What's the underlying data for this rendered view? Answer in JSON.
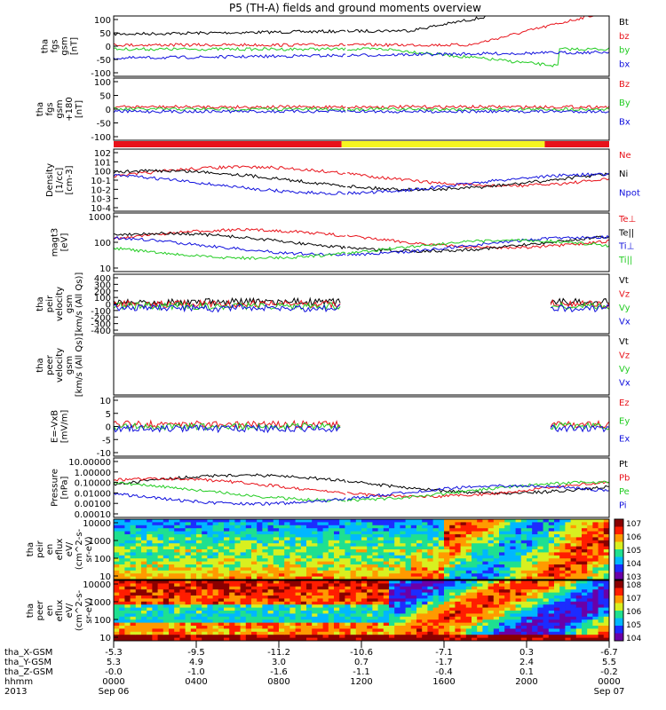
{
  "title": "P5 (TH-A) fields and ground moments overview",
  "colors": {
    "black": "#000000",
    "red": "#e8121a",
    "green": "#22cc22",
    "blue": "#1010dd",
    "yellow": "#f5f520"
  },
  "chart_data": [
    {
      "type": "line",
      "panel": "fgs",
      "ylabel": [
        "tha",
        "fgs",
        "gsm",
        "[nT]"
      ],
      "yticks": [
        "100",
        "50",
        "0",
        "-50",
        "-100"
      ],
      "series": [
        {
          "name": "Bt",
          "color": "black"
        },
        {
          "name": "bz",
          "color": "red"
        },
        {
          "name": "by",
          "color": "green"
        },
        {
          "name": "bx",
          "color": "blue"
        }
      ],
      "ylim": [
        -100,
        100
      ]
    },
    {
      "type": "line",
      "panel": "fgs_dsl",
      "ylabel": [
        "tha",
        "fgs",
        "gsm",
        "+180",
        "[nT]"
      ],
      "yticks": [
        "100",
        "50",
        "0",
        "-50",
        "-100"
      ],
      "series": [
        {
          "name": "Bz",
          "color": "red"
        },
        {
          "name": "By",
          "color": "green"
        },
        {
          "name": "Bx",
          "color": "blue"
        }
      ],
      "ylim": [
        -120,
        100
      ]
    },
    {
      "type": "bar",
      "panel": "mode_bar",
      "segments": [
        {
          "from": 0.0,
          "to": 0.46,
          "color": "red"
        },
        {
          "from": 0.46,
          "to": 0.87,
          "color": "yellow"
        },
        {
          "from": 0.87,
          "to": 1.0,
          "color": "red"
        }
      ]
    },
    {
      "type": "line",
      "panel": "density",
      "ylabel": [
        "Density",
        "[1/cc]",
        "[cm-3]"
      ],
      "yticks": [
        "10^2",
        "10^1",
        "10^0",
        "10^-1",
        "10^-2",
        "10^-3",
        "10^-4"
      ],
      "series": [
        {
          "name": "Ne",
          "color": "red"
        },
        {
          "name": "Ni",
          "color": "black"
        },
        {
          "name": "Npot",
          "color": "blue"
        }
      ],
      "log": true
    },
    {
      "type": "line",
      "panel": "temperature",
      "ylabel": [
        "magt3",
        "[eV]"
      ],
      "yticks": [
        "1000",
        "100",
        "10"
      ],
      "series": [
        {
          "name": "Te⊥",
          "color": "red"
        },
        {
          "name": "Te||",
          "color": "black"
        },
        {
          "name": "Ti⊥",
          "color": "blue"
        },
        {
          "name": "Ti||",
          "color": "green"
        }
      ],
      "log": true
    },
    {
      "type": "line",
      "panel": "peir_velocity",
      "ylabel": [
        "tha",
        "peir",
        "velocity",
        "gsm",
        "[km/s (All Qs)]"
      ],
      "yticks": [
        "400",
        "300",
        "200",
        "100",
        "0",
        "-100",
        "-200",
        "-300",
        "-400"
      ],
      "series": [
        {
          "name": "Vt",
          "color": "black"
        },
        {
          "name": "Vz",
          "color": "red"
        },
        {
          "name": "Vy",
          "color": "green"
        },
        {
          "name": "Vx",
          "color": "blue"
        }
      ],
      "ylim": [
        -400,
        400
      ]
    },
    {
      "type": "line",
      "panel": "peer_velocity",
      "ylabel": [
        "tha",
        "peer",
        "velocity",
        "gsm",
        "[km/s (All Qs)]"
      ],
      "yticks": [],
      "series": [
        {
          "name": "Vt",
          "color": "black"
        },
        {
          "name": "Vz",
          "color": "red"
        },
        {
          "name": "Vy",
          "color": "green"
        },
        {
          "name": "Vx",
          "color": "blue"
        }
      ]
    },
    {
      "type": "line",
      "panel": "efield",
      "ylabel": [
        "E=-VxB",
        "[mV/m]"
      ],
      "yticks": [
        "10",
        "5",
        "0",
        "-5",
        "-10"
      ],
      "series": [
        {
          "name": "Ez",
          "color": "red"
        },
        {
          "name": "Ey",
          "color": "green"
        },
        {
          "name": "Ex",
          "color": "blue"
        }
      ],
      "ylim": [
        -10,
        10
      ]
    },
    {
      "type": "line",
      "panel": "pressure",
      "ylabel": [
        "Pressure",
        "[nPa]"
      ],
      "yticks": [
        "10.00000",
        "1.00000",
        "0.10000",
        "0.01000",
        "0.00100",
        "0.00010"
      ],
      "series": [
        {
          "name": "Pt",
          "color": "black"
        },
        {
          "name": "Pb",
          "color": "red"
        },
        {
          "name": "Pe",
          "color": "green"
        },
        {
          "name": "Pi",
          "color": "blue"
        }
      ],
      "log": true
    },
    {
      "type": "heatmap",
      "panel": "peir_spec",
      "ylabel": [
        "tha",
        "peir",
        "en",
        "eflux",
        "eV/",
        "(cm^2-s-",
        "sr-eV)"
      ],
      "yticks": [
        "10000",
        "1000",
        "100",
        "10"
      ],
      "colorbar": [
        "10^7",
        "10^6",
        "10^5",
        "10^4",
        "10^3"
      ]
    },
    {
      "type": "heatmap",
      "panel": "peer_spec",
      "ylabel": [
        "tha",
        "peer",
        "en",
        "eflux",
        "eV/",
        "(cm^2-s-",
        "sr-eV)"
      ],
      "yticks": [
        "10000",
        "1000",
        "100",
        "10"
      ],
      "colorbar": [
        "10^8",
        "10^7",
        "10^6",
        "10^5",
        "10^4"
      ]
    }
  ],
  "xaxis": {
    "row_labels": [
      "tha_X-GSM",
      "tha_Y-GSM",
      "tha_Z-GSM",
      "hhmm",
      "2013"
    ],
    "columns": [
      {
        "x": "-5.3",
        "y": "5.3",
        "z": "-0.0",
        "t": "0000",
        "d": "Sep 06"
      },
      {
        "x": "-9.5",
        "y": "4.9",
        "z": "-1.0",
        "t": "0400",
        "d": ""
      },
      {
        "x": "-11.2",
        "y": "3.0",
        "z": "-1.6",
        "t": "0800",
        "d": ""
      },
      {
        "x": "-10.6",
        "y": "0.7",
        "z": "-1.1",
        "t": "1200",
        "d": ""
      },
      {
        "x": "-7.1",
        "y": "-1.7",
        "z": "-0.4",
        "t": "1600",
        "d": ""
      },
      {
        "x": "0.3",
        "y": "2.4",
        "z": "0.1",
        "t": "2000",
        "d": ""
      },
      {
        "x": "-6.7",
        "y": "5.5",
        "z": "-0.2",
        "t": "0000",
        "d": "Sep 07"
      }
    ]
  }
}
